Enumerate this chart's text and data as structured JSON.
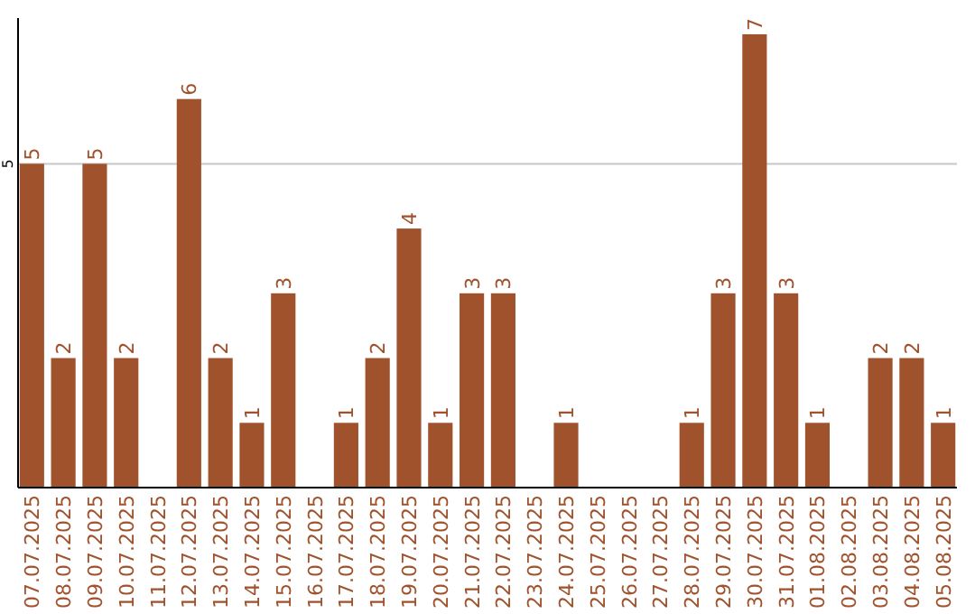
{
  "chart_data": {
    "type": "bar",
    "categories": [
      "07.07.2025",
      "08.07.2025",
      "09.07.2025",
      "10.07.2025",
      "11.07.2025",
      "12.07.2025",
      "13.07.2025",
      "14.07.2025",
      "15.07.2025",
      "16.07.2025",
      "17.07.2025",
      "18.07.2025",
      "19.07.2025",
      "20.07.2025",
      "21.07.2025",
      "22.07.2025",
      "23.07.2025",
      "24.07.2025",
      "25.07.2025",
      "26.07.2025",
      "27.07.2025",
      "28.07.2025",
      "29.07.2025",
      "30.07.2025",
      "31.07.2025",
      "01.08.2025",
      "02.08.2025",
      "03.08.2025",
      "04.08.2025",
      "05.08.2025"
    ],
    "values": [
      5,
      2,
      5,
      2,
      0,
      6,
      2,
      1,
      3,
      0,
      1,
      2,
      4,
      1,
      3,
      3,
      0,
      1,
      0,
      0,
      0,
      1,
      3,
      7,
      3,
      1,
      0,
      2,
      2,
      1
    ],
    "value_labels": [
      "5",
      "2",
      "5",
      "2",
      null,
      "6",
      "2",
      "1",
      "3",
      null,
      "1",
      "2",
      "4",
      "1",
      "3",
      "3",
      null,
      "1",
      null,
      null,
      null,
      "1",
      "3",
      "7",
      "3",
      "1",
      null,
      "2",
      "2",
      "1"
    ],
    "color": "#a0522d",
    "ylim": [
      0,
      7.25
    ],
    "yticks": [
      5
    ],
    "grid": "y"
  }
}
